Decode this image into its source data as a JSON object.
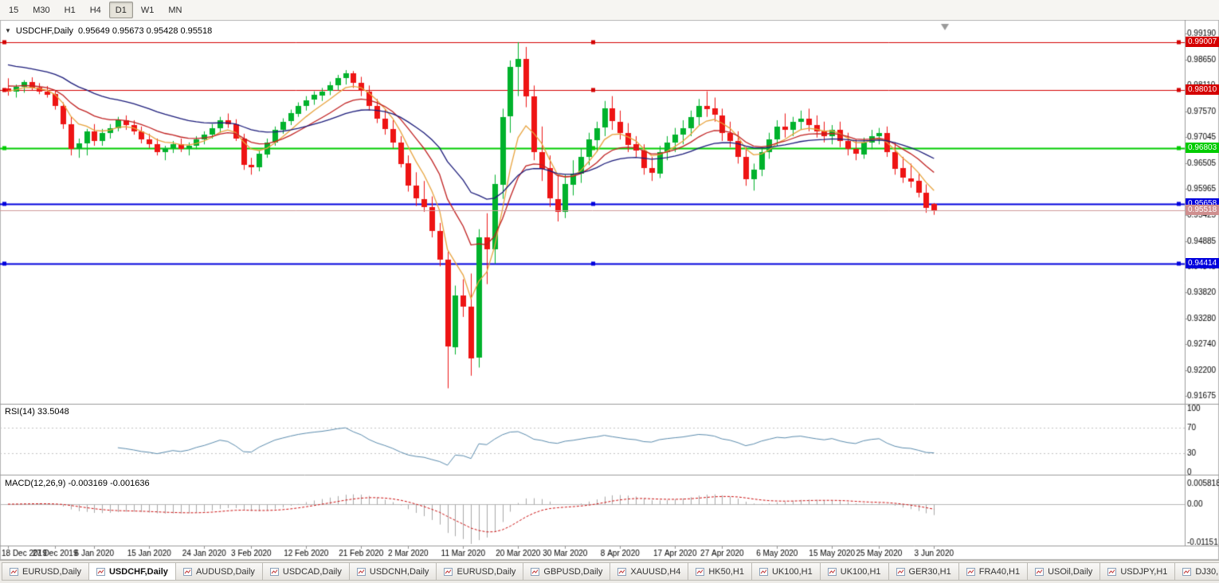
{
  "toolbar": {
    "timeframes": [
      {
        "label": "15",
        "active": false
      },
      {
        "label": "M30",
        "active": false
      },
      {
        "label": "H1",
        "active": false
      },
      {
        "label": "H4",
        "active": false
      },
      {
        "label": "D1",
        "active": true
      },
      {
        "label": "W1",
        "active": false
      },
      {
        "label": "MN",
        "active": false
      }
    ]
  },
  "chart": {
    "title_symbol": "USDCHF,Daily",
    "ohlc": "0.95649 0.95673 0.95428 0.95518",
    "price_axis": [
      "0.99190",
      "0.98650",
      "0.98110",
      "0.97570",
      "0.97045",
      "0.96505",
      "0.95965",
      "0.95425",
      "0.94885",
      "0.94345",
      "0.93820",
      "0.93280",
      "0.92740",
      "0.92200",
      "0.91675"
    ],
    "hlines": [
      {
        "value": 0.99007,
        "label": "0.99007",
        "color": "#d40000",
        "width": 1
      },
      {
        "value": 0.9801,
        "label": "0.98010",
        "color": "#d40000",
        "width": 1
      },
      {
        "value": 0.96803,
        "label": "0.96803",
        "color": "#00cc00",
        "width": 2
      },
      {
        "value": 0.95658,
        "label": "0.95658",
        "color": "#0000dd",
        "width": 2
      },
      {
        "value": 0.94414,
        "label": "0.94414",
        "color": "#0000dd",
        "width": 2
      }
    ],
    "current_price": {
      "value": 0.95518,
      "label": "0.95518",
      "label_bg": "#cf8f8f"
    }
  },
  "rsi_panel": {
    "label": "RSI(14) 33.5048",
    "levels": [
      {
        "label": "100",
        "value": 100
      },
      {
        "label": "70",
        "value": 70
      },
      {
        "label": "30",
        "value": 30
      },
      {
        "label": "0",
        "value": 0
      }
    ]
  },
  "macd_panel": {
    "label": "MACD(12,26,9) -0.003169 -0.001636",
    "levels": [
      {
        "label": "0.005818",
        "value": 0.005818
      },
      {
        "label": "0.00",
        "value": 0
      },
      {
        "label": "-0.01151",
        "value": -0.01151
      }
    ]
  },
  "tabs": [
    {
      "label": "EURUSD,Daily",
      "active": false
    },
    {
      "label": "USDCHF,Daily",
      "active": true
    },
    {
      "label": "AUDUSD,Daily",
      "active": false
    },
    {
      "label": "USDCAD,Daily",
      "active": false
    },
    {
      "label": "USDCNH,Daily",
      "active": false
    },
    {
      "label": "EURUSD,Daily",
      "active": false
    },
    {
      "label": "GBPUSD,Daily",
      "active": false
    },
    {
      "label": "XAUUSD,H4",
      "active": false
    },
    {
      "label": "HK50,H1",
      "active": false
    },
    {
      "label": "UK100,H1",
      "active": false
    },
    {
      "label": "UK100,H1",
      "active": false
    },
    {
      "label": "GER30,H1",
      "active": false
    },
    {
      "label": "FRA40,H1",
      "active": false
    },
    {
      "label": "USOil,Daily",
      "active": false
    },
    {
      "label": "USDJPY,H1",
      "active": false
    },
    {
      "label": "DJ30,H1",
      "active": false
    }
  ],
  "chart_data": {
    "type": "candlestick",
    "symbol": "USDCHF",
    "timeframe": "Daily",
    "last_bar": {
      "open": "0.95649",
      "high": "0.95673",
      "low": "0.95428",
      "close": "0.95518"
    },
    "price_axis_top": 0.9919,
    "price_axis_bottom": 0.91675,
    "colors": {
      "up": "#00b22c",
      "down": "#ee1414",
      "ma_fast": "#e8a33d",
      "ma_medium": "#c02020",
      "ma_slow": "#1b1b7a",
      "rsi": "#5b8cae",
      "macd_hist": "#a8a8a8",
      "macd_signal": "#cc1111"
    },
    "moving_averages": [
      {
        "name": "ma-fast",
        "period": 6,
        "seed": 0.98,
        "color": "#e8a33d"
      },
      {
        "name": "ma-medium",
        "period": 13,
        "seed": 0.9812,
        "color": "#c02020"
      },
      {
        "name": "ma-slow",
        "period": 28,
        "seed": 0.9858,
        "color": "#1b1b7a"
      }
    ],
    "rsi": {
      "period": 14,
      "last_value": 33.5048
    },
    "macd": {
      "fast": 12,
      "slow": 26,
      "signal": 9,
      "last_main": -0.003169,
      "last_signal": -0.001636
    },
    "date_labels": [
      {
        "label": "18 Dec 2019",
        "index": 0
      },
      {
        "label": "27 Dec 2019",
        "index": 6
      },
      {
        "label": "6 Jan 2020",
        "index": 11
      },
      {
        "label": "15 Jan 2020",
        "index": 18
      },
      {
        "label": "24 Jan 2020",
        "index": 25
      },
      {
        "label": "3 Feb 2020",
        "index": 31
      },
      {
        "label": "12 Feb 2020",
        "index": 38
      },
      {
        "label": "21 Feb 2020",
        "index": 45
      },
      {
        "label": "2 Mar 2020",
        "index": 51
      },
      {
        "label": "11 Mar 2020",
        "index": 58
      },
      {
        "label": "20 Mar 2020",
        "index": 65
      },
      {
        "label": "30 Mar 2020",
        "index": 71
      },
      {
        "label": "8 Apr 2020",
        "index": 78
      },
      {
        "label": "17 Apr 2020",
        "index": 85
      },
      {
        "label": "27 Apr 2020",
        "index": 91
      },
      {
        "label": "6 May 2020",
        "index": 98
      },
      {
        "label": "15 May 2020",
        "index": 105
      },
      {
        "label": "25 May 2020",
        "index": 111
      },
      {
        "label": "3 Jun 2020",
        "index": 118
      }
    ],
    "candles": [
      [
        0.9805,
        0.9826,
        0.979,
        0.9798
      ],
      [
        0.9798,
        0.9813,
        0.9786,
        0.9808
      ],
      [
        0.9808,
        0.9822,
        0.9796,
        0.9818
      ],
      [
        0.9818,
        0.9828,
        0.9801,
        0.9807
      ],
      [
        0.9807,
        0.9816,
        0.9793,
        0.9799
      ],
      [
        0.9799,
        0.981,
        0.9786,
        0.9793
      ],
      [
        0.9793,
        0.9801,
        0.9761,
        0.9769
      ],
      [
        0.9769,
        0.9776,
        0.9721,
        0.9731
      ],
      [
        0.9731,
        0.9746,
        0.9666,
        0.9679
      ],
      [
        0.9679,
        0.9701,
        0.9661,
        0.9691
      ],
      [
        0.9691,
        0.9721,
        0.9666,
        0.9716
      ],
      [
        0.9716,
        0.9731,
        0.9686,
        0.9696
      ],
      [
        0.9696,
        0.9721,
        0.9686,
        0.9713
      ],
      [
        0.9713,
        0.9731,
        0.9701,
        0.9723
      ],
      [
        0.9723,
        0.9746,
        0.9716,
        0.9739
      ],
      [
        0.9739,
        0.9749,
        0.9719,
        0.9729
      ],
      [
        0.9729,
        0.9739,
        0.9709,
        0.9716
      ],
      [
        0.9716,
        0.9726,
        0.9691,
        0.9699
      ],
      [
        0.9699,
        0.9711,
        0.9681,
        0.9689
      ],
      [
        0.9689,
        0.9701,
        0.9666,
        0.9673
      ],
      [
        0.9673,
        0.9686,
        0.9656,
        0.9681
      ],
      [
        0.9681,
        0.9696,
        0.9671,
        0.9689
      ],
      [
        0.9689,
        0.9701,
        0.9673,
        0.9679
      ],
      [
        0.9679,
        0.9693,
        0.9666,
        0.9686
      ],
      [
        0.9686,
        0.9706,
        0.9679,
        0.9699
      ],
      [
        0.9699,
        0.9716,
        0.9689,
        0.9709
      ],
      [
        0.9709,
        0.9731,
        0.9701,
        0.9723
      ],
      [
        0.9723,
        0.9746,
        0.9713,
        0.9739
      ],
      [
        0.9739,
        0.9753,
        0.9723,
        0.9731
      ],
      [
        0.9731,
        0.9741,
        0.9696,
        0.9701
      ],
      [
        0.9701,
        0.9711,
        0.9636,
        0.9646
      ],
      [
        0.9646,
        0.9661,
        0.9626,
        0.9641
      ],
      [
        0.9641,
        0.9676,
        0.9633,
        0.9669
      ],
      [
        0.9669,
        0.9701,
        0.9661,
        0.9693
      ],
      [
        0.9693,
        0.9726,
        0.9686,
        0.9719
      ],
      [
        0.9719,
        0.9743,
        0.9711,
        0.9736
      ],
      [
        0.9736,
        0.9761,
        0.9729,
        0.9753
      ],
      [
        0.9753,
        0.9776,
        0.9746,
        0.9769
      ],
      [
        0.9769,
        0.9789,
        0.9759,
        0.9781
      ],
      [
        0.9781,
        0.9799,
        0.9771,
        0.9791
      ],
      [
        0.9791,
        0.9806,
        0.9779,
        0.9799
      ],
      [
        0.9799,
        0.9819,
        0.9791,
        0.9811
      ],
      [
        0.9811,
        0.9833,
        0.9801,
        0.9826
      ],
      [
        0.9826,
        0.9843,
        0.9813,
        0.9836
      ],
      [
        0.9836,
        0.9841,
        0.9806,
        0.9816
      ],
      [
        0.9816,
        0.9829,
        0.9789,
        0.9799
      ],
      [
        0.9799,
        0.9811,
        0.9759,
        0.9769
      ],
      [
        0.9769,
        0.9783,
        0.9733,
        0.9743
      ],
      [
        0.9743,
        0.9761,
        0.9709,
        0.9721
      ],
      [
        0.9721,
        0.9739,
        0.9681,
        0.9693
      ],
      [
        0.9693,
        0.9706,
        0.9641,
        0.9649
      ],
      [
        0.9649,
        0.9666,
        0.9591,
        0.9603
      ],
      [
        0.9603,
        0.9631,
        0.9561,
        0.9576
      ],
      [
        0.9576,
        0.9613,
        0.9549,
        0.9559
      ],
      [
        0.9559,
        0.9581,
        0.9496,
        0.9509
      ],
      [
        0.9509,
        0.9526,
        0.9436,
        0.9449
      ],
      [
        0.9449,
        0.9466,
        0.9183,
        0.9269
      ],
      [
        0.9269,
        0.9396,
        0.9253,
        0.9376
      ],
      [
        0.9376,
        0.9409,
        0.9331,
        0.9353
      ],
      [
        0.9353,
        0.9421,
        0.9209,
        0.9246
      ],
      [
        0.9246,
        0.9513,
        0.9226,
        0.9496
      ],
      [
        0.9496,
        0.9546,
        0.9399,
        0.9471
      ],
      [
        0.9471,
        0.9626,
        0.9441,
        0.9606
      ],
      [
        0.9606,
        0.9763,
        0.9576,
        0.9746
      ],
      [
        0.9746,
        0.9863,
        0.9713,
        0.9849
      ],
      [
        0.9849,
        0.9901,
        0.9789,
        0.9866
      ],
      [
        0.9866,
        0.9891,
        0.9766,
        0.9789
      ],
      [
        0.9789,
        0.9811,
        0.9656,
        0.9673
      ],
      [
        0.9673,
        0.9726,
        0.9613,
        0.9639
      ],
      [
        0.9639,
        0.9666,
        0.9559,
        0.9576
      ],
      [
        0.9576,
        0.9626,
        0.9529,
        0.9549
      ],
      [
        0.9549,
        0.9626,
        0.9536,
        0.9606
      ],
      [
        0.9606,
        0.9656,
        0.9583,
        0.9629
      ],
      [
        0.9629,
        0.9681,
        0.9609,
        0.9663
      ],
      [
        0.9663,
        0.9713,
        0.9646,
        0.9699
      ],
      [
        0.9699,
        0.9736,
        0.9673,
        0.9723
      ],
      [
        0.9723,
        0.9779,
        0.9706,
        0.9763
      ],
      [
        0.9763,
        0.9789,
        0.9719,
        0.9736
      ],
      [
        0.9736,
        0.9759,
        0.9699,
        0.9713
      ],
      [
        0.9713,
        0.9733,
        0.9673,
        0.9689
      ],
      [
        0.9689,
        0.9706,
        0.9663,
        0.9676
      ],
      [
        0.9676,
        0.9689,
        0.9626,
        0.9639
      ],
      [
        0.9639,
        0.9663,
        0.9613,
        0.9629
      ],
      [
        0.9629,
        0.9686,
        0.9619,
        0.9673
      ],
      [
        0.9673,
        0.9706,
        0.9656,
        0.9693
      ],
      [
        0.9693,
        0.9723,
        0.9673,
        0.9709
      ],
      [
        0.9709,
        0.9739,
        0.9689,
        0.9723
      ],
      [
        0.9723,
        0.9759,
        0.9706,
        0.9746
      ],
      [
        0.9746,
        0.9783,
        0.9729,
        0.9769
      ],
      [
        0.9769,
        0.9799,
        0.9746,
        0.9763
      ],
      [
        0.9763,
        0.9786,
        0.9736,
        0.9749
      ],
      [
        0.9749,
        0.9763,
        0.9696,
        0.9713
      ],
      [
        0.9713,
        0.9736,
        0.9683,
        0.9696
      ],
      [
        0.9696,
        0.9716,
        0.9649,
        0.9663
      ],
      [
        0.9663,
        0.9683,
        0.9603,
        0.9616
      ],
      [
        0.9616,
        0.9649,
        0.9593,
        0.9636
      ],
      [
        0.9636,
        0.9683,
        0.9623,
        0.9673
      ],
      [
        0.9673,
        0.9713,
        0.9659,
        0.9699
      ],
      [
        0.9699,
        0.9739,
        0.9686,
        0.9726
      ],
      [
        0.9726,
        0.9753,
        0.9703,
        0.9719
      ],
      [
        0.9719,
        0.9746,
        0.9706,
        0.9736
      ],
      [
        0.9736,
        0.9759,
        0.9719,
        0.9743
      ],
      [
        0.9743,
        0.9763,
        0.9716,
        0.9729
      ],
      [
        0.9729,
        0.9749,
        0.9703,
        0.9716
      ],
      [
        0.9716,
        0.9736,
        0.9693,
        0.9706
      ],
      [
        0.9706,
        0.9729,
        0.9689,
        0.9719
      ],
      [
        0.9719,
        0.9736,
        0.9683,
        0.9696
      ],
      [
        0.9696,
        0.9713,
        0.9666,
        0.9679
      ],
      [
        0.9679,
        0.9699,
        0.9656,
        0.9669
      ],
      [
        0.9669,
        0.9703,
        0.9659,
        0.9693
      ],
      [
        0.9693,
        0.9719,
        0.9679,
        0.9706
      ],
      [
        0.9706,
        0.9723,
        0.9689,
        0.9713
      ],
      [
        0.9713,
        0.9726,
        0.9663,
        0.9673
      ],
      [
        0.9673,
        0.9693,
        0.9626,
        0.9639
      ],
      [
        0.9639,
        0.9663,
        0.9609,
        0.9619
      ],
      [
        0.9619,
        0.9649,
        0.9599,
        0.9613
      ],
      [
        0.9613,
        0.9629,
        0.9579,
        0.9589
      ],
      [
        0.9589,
        0.9606,
        0.9547,
        0.9558
      ],
      [
        0.95649,
        0.95673,
        0.95428,
        0.95518
      ]
    ]
  }
}
